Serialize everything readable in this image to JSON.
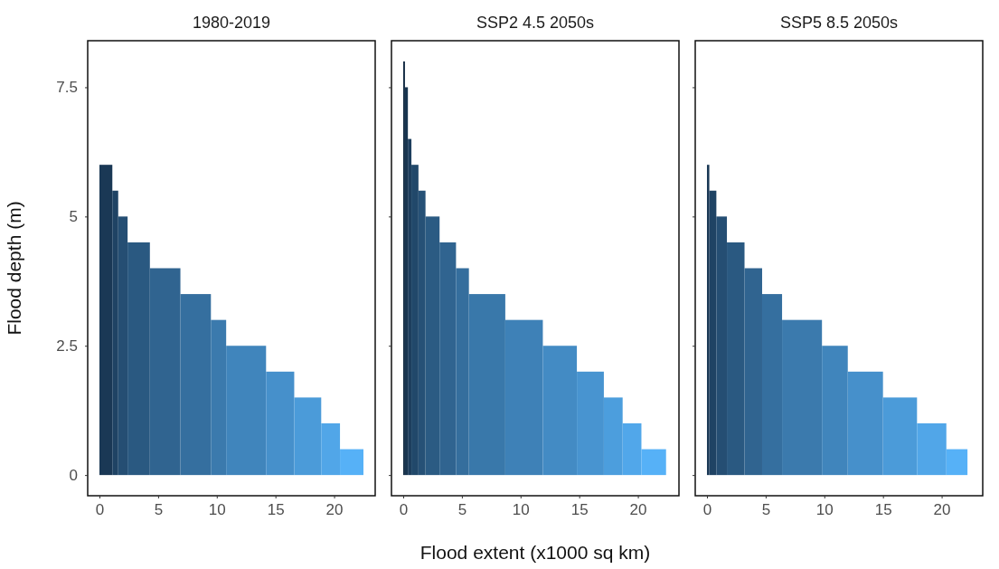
{
  "chart_data": [
    {
      "type": "histogram",
      "title": "1980-2019",
      "ylabel": "Flood depth (m)",
      "bins": [
        0,
        1.1,
        1.6,
        2.4,
        4.3,
        6.9,
        9.5,
        10.8,
        14.2,
        16.6,
        18.9,
        20.5,
        22.5
      ],
      "values": [
        6,
        5.5,
        5,
        4.5,
        4,
        3.5,
        3,
        2.5,
        2,
        1.5,
        1,
        0.5
      ],
      "colors": [
        "#1a3855",
        "#1f4364",
        "#254e73",
        "#2a5981",
        "#306490",
        "#356f9f",
        "#3b7aad",
        "#4085bc",
        "#4690cb",
        "#4b9bd9",
        "#51a6e8",
        "#56b1f7"
      ],
      "xlim": [
        -1,
        23.5
      ],
      "xticks": [
        0,
        5,
        10,
        15,
        20
      ],
      "ylim": [
        -0.4,
        8.4
      ],
      "yticks": [
        0,
        2.5,
        5,
        7.5
      ],
      "grid": false
    },
    {
      "type": "histogram",
      "title": "SSP2 4.5 2050s",
      "xlabel": "Flood extent (x1000 sq km)",
      "bins": [
        0,
        0.15,
        0.4,
        0.7,
        1.3,
        1.9,
        3.1,
        4.5,
        5.6,
        8.7,
        11.9,
        14.8,
        17.1,
        18.7,
        20.3,
        22.4
      ],
      "values": [
        8,
        7.5,
        6.5,
        6,
        5.5,
        5,
        4.5,
        4,
        3.5,
        3,
        2.5,
        2,
        1.5,
        1,
        0.5
      ],
      "colors": [
        "#132b43",
        "#183550",
        "#1d3e5d",
        "#21486a",
        "#265176",
        "#2b5b83",
        "#306490",
        "#356e9d",
        "#3978aa",
        "#3e81b7",
        "#438bc4",
        "#4894d0",
        "#4c9edd",
        "#51a7ea",
        "#56b1f7"
      ],
      "xlim": [
        -1,
        23.5
      ],
      "xticks": [
        0,
        5,
        10,
        15,
        20
      ],
      "ylim": [
        -0.4,
        8.4
      ],
      "yticks": [
        0,
        2.5,
        5,
        7.5
      ],
      "tick_labels": "x",
      "grid": false
    },
    {
      "type": "histogram",
      "title": "SSP5 8.5 2050s",
      "bins": [
        0,
        0.2,
        0.8,
        1.7,
        3.2,
        4.7,
        6.4,
        9.8,
        12.0,
        15.0,
        17.9,
        20.4,
        22.2
      ],
      "values": [
        6,
        5.5,
        5,
        4.5,
        4,
        3.5,
        3,
        2.5,
        2,
        1.5,
        1,
        0.5
      ],
      "colors": [
        "#1a3855",
        "#1f4364",
        "#254e73",
        "#2a5981",
        "#306490",
        "#356f9f",
        "#3b7aad",
        "#4085bc",
        "#4690cb",
        "#4b9bd9",
        "#51a6e8",
        "#56b1f7"
      ],
      "xlim": [
        -1,
        23.5
      ],
      "xticks": [
        0,
        5,
        10,
        15,
        20
      ],
      "ylim": [
        -0.4,
        8.4
      ],
      "yticks": [
        0,
        2.5,
        5,
        7.5
      ],
      "tick_labels": "x",
      "grid": false
    }
  ]
}
